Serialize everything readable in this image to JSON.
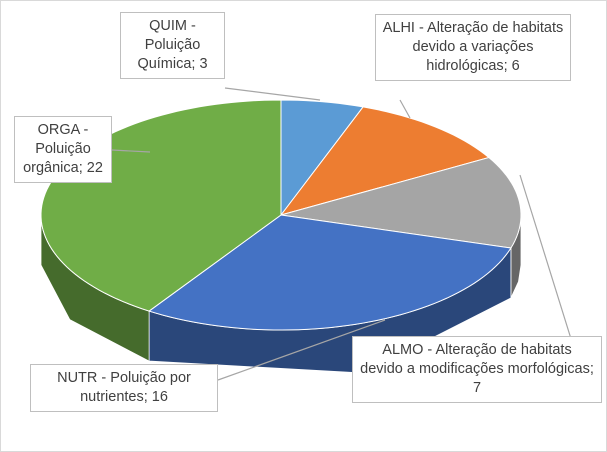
{
  "chart_data": {
    "type": "pie3d",
    "values": [
      3,
      6,
      7,
      16,
      22
    ],
    "value_labels": [
      "QUIM - Poluição Química; 3",
      "ALHI - Alteração de habitats devido a variações hidrológicas; 6",
      "ALMO - Alteração de habitats devido a modificações morfológicas; 7",
      "NUTR - Poluição por nutrientes; 16",
      "ORGA - Poluição orgânica; 22"
    ],
    "colors": [
      "#5b9bd5",
      "#ed7d31",
      "#a5a5a5",
      "#4472c4",
      "#70ad47"
    ]
  }
}
